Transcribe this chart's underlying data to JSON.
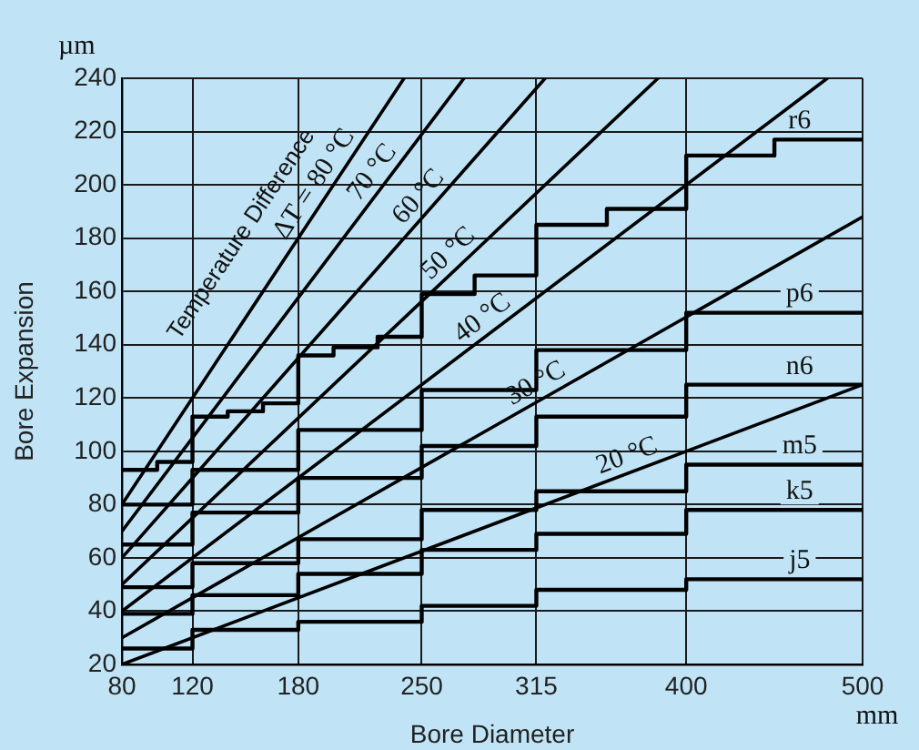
{
  "chart_data": {
    "type": "line",
    "xlabel": "Bore Diameter",
    "ylabel": "Bore Expansion",
    "annotations": [
      "µm",
      "mm",
      "Temperature Difference"
    ],
    "xlim": [
      80,
      500
    ],
    "xticks": [
      80,
      120,
      180,
      250,
      315,
      400,
      500
    ],
    "ylim": [
      20,
      240
    ],
    "yticks": [
      20,
      40,
      60,
      80,
      100,
      120,
      140,
      160,
      180,
      200,
      220,
      240
    ],
    "grid": true,
    "legend": false,
    "marker": "none",
    "line_style": "solid",
    "series": [
      {
        "name": "ΔT = 80 °C",
        "type": "line",
        "color": "#000000",
        "x": [
          80,
          240
        ],
        "values": [
          80,
          240
        ]
      },
      {
        "name": "70 °C",
        "type": "line",
        "color": "#000000",
        "x": [
          80,
          274
        ],
        "values": [
          70,
          240
        ]
      },
      {
        "name": "60 °C",
        "type": "line",
        "color": "#000000",
        "x": [
          80,
          320
        ],
        "values": [
          60,
          240
        ]
      },
      {
        "name": "50 °C",
        "type": "line",
        "color": "#000000",
        "x": [
          80,
          384
        ],
        "values": [
          50,
          240
        ]
      },
      {
        "name": "40 °C",
        "type": "line",
        "color": "#000000",
        "x": [
          80,
          480
        ],
        "values": [
          40,
          240
        ]
      },
      {
        "name": "30 °C",
        "type": "line",
        "color": "#000000",
        "x": [
          80,
          500
        ],
        "values": [
          30,
          188
        ]
      },
      {
        "name": "20 °C",
        "type": "line",
        "color": "#000000",
        "x": [
          80,
          500
        ],
        "values": [
          20,
          125
        ]
      },
      {
        "name": "r6",
        "type": "step",
        "color": "#000000",
        "x": [
          80,
          100,
          120,
          140,
          160,
          180,
          200,
          225,
          250,
          280,
          315,
          355,
          400,
          450,
          500
        ],
        "values": [
          93,
          96,
          113,
          115,
          118,
          136,
          139,
          143,
          159,
          166,
          185,
          191,
          211,
          217,
          217
        ]
      },
      {
        "name": "p6",
        "type": "step",
        "color": "#000000",
        "x": [
          80,
          120,
          180,
          250,
          315,
          400,
          500
        ],
        "values": [
          80,
          93,
          108,
          123,
          138,
          152,
          152
        ]
      },
      {
        "name": "n6",
        "type": "step",
        "color": "#000000",
        "x": [
          80,
          120,
          180,
          250,
          315,
          400,
          500
        ],
        "values": [
          65,
          77,
          90,
          102,
          113,
          125,
          125
        ]
      },
      {
        "name": "m5",
        "type": "step",
        "color": "#000000",
        "x": [
          80,
          120,
          180,
          250,
          315,
          400,
          500
        ],
        "values": [
          49,
          58,
          67,
          78,
          85,
          95,
          95
        ]
      },
      {
        "name": "k5",
        "type": "step",
        "color": "#000000",
        "x": [
          80,
          120,
          180,
          250,
          315,
          400,
          500
        ],
        "values": [
          39,
          46,
          54,
          63,
          69,
          78,
          78
        ]
      },
      {
        "name": "j5",
        "type": "step",
        "color": "#000000",
        "x": [
          80,
          120,
          180,
          250,
          315,
          400,
          500
        ],
        "values": [
          26,
          33,
          36,
          42,
          48,
          52,
          52
        ]
      }
    ]
  }
}
